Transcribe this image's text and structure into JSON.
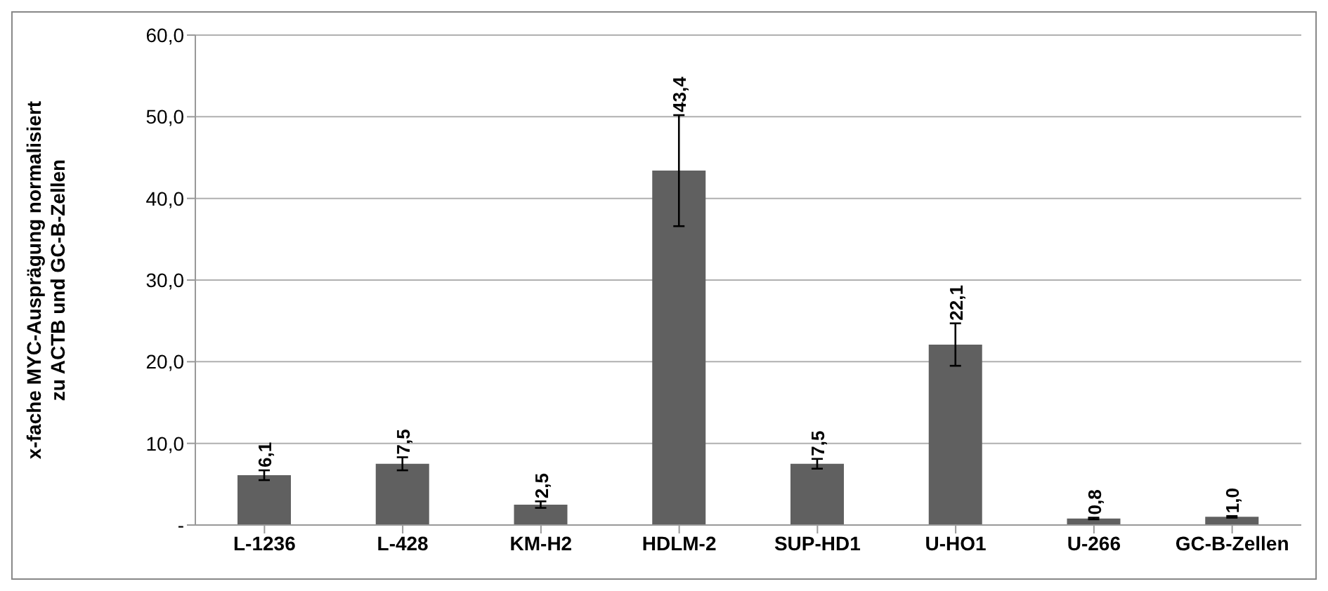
{
  "chart_data": {
    "type": "bar",
    "ylabel": "x-fache MYC-Ausprägung normalisiert\nzu ACTB und GC-B-Zellen",
    "categories": [
      "L-1236",
      "L-428",
      "KM-H2",
      "HDLM-2",
      "SUP-HD1",
      "U-HO1",
      "U-266",
      "GC-B-Zellen"
    ],
    "values": [
      6.1,
      7.5,
      2.5,
      43.4,
      7.5,
      22.1,
      0.8,
      1.0
    ],
    "errors": [
      0.6,
      0.8,
      0.4,
      6.8,
      0.6,
      2.6,
      0.1,
      0.1
    ],
    "value_labels": [
      "6,1",
      "7,5",
      "2,5",
      "43,4",
      "7,5",
      "22,1",
      "0,8",
      "1,0"
    ],
    "color": "#606060",
    "ylim": [
      0,
      60
    ],
    "yticks": [
      {
        "value": 0,
        "label": "-"
      },
      {
        "value": 10,
        "label": "10,0"
      },
      {
        "value": 20,
        "label": "20,0"
      },
      {
        "value": 30,
        "label": "30,0"
      },
      {
        "value": 40,
        "label": "40,0"
      },
      {
        "value": 50,
        "label": "50,0"
      },
      {
        "value": 60,
        "label": "60,0"
      }
    ],
    "grid": "y",
    "legend": false
  }
}
